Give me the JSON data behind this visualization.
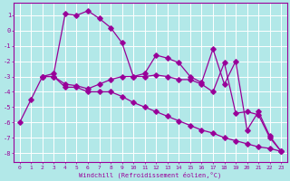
{
  "xlabel": "Windchill (Refroidissement éolien,°C)",
  "background_color": "#b2e8e8",
  "grid_color": "#ffffff",
  "line_color": "#990099",
  "xlim": [
    -0.5,
    23.5
  ],
  "ylim": [
    -8.6,
    1.8
  ],
  "xticks": [
    0,
    1,
    2,
    3,
    4,
    5,
    6,
    7,
    8,
    9,
    10,
    11,
    12,
    13,
    14,
    15,
    16,
    17,
    18,
    19,
    20,
    21,
    22,
    23
  ],
  "yticks": [
    1,
    0,
    -1,
    -2,
    -3,
    -4,
    -5,
    -6,
    -7,
    -8
  ],
  "line1_x": [
    0,
    1,
    2,
    3,
    4,
    5,
    6,
    7,
    8,
    9,
    10,
    11,
    12,
    13,
    14,
    15,
    16,
    17,
    18,
    19,
    20,
    21,
    22,
    23
  ],
  "line1_y": [
    -6.0,
    -4.5,
    -3.0,
    -3.0,
    -3.7,
    -3.7,
    -4.0,
    -4.0,
    -4.0,
    -4.3,
    -4.7,
    -5.0,
    -5.3,
    -5.6,
    -5.9,
    -6.2,
    -6.5,
    -6.7,
    -7.0,
    -7.2,
    -7.4,
    -7.6,
    -7.7,
    -7.9
  ],
  "line2_x": [
    2,
    3,
    4,
    5,
    6,
    7,
    8,
    9,
    10,
    11,
    12,
    13,
    14,
    15,
    16,
    17,
    18,
    19,
    20,
    21,
    22,
    23
  ],
  "line2_y": [
    -3.0,
    -2.8,
    1.1,
    1.0,
    1.3,
    0.8,
    0.2,
    -0.8,
    -3.0,
    -2.8,
    -1.6,
    -1.8,
    -2.1,
    -3.0,
    -3.4,
    -1.2,
    -3.5,
    -2.0,
    -6.5,
    -5.3,
    -6.9,
    -7.9
  ],
  "line3_x": [
    2,
    3,
    4,
    5,
    6,
    7,
    8,
    9,
    10,
    11,
    12,
    13,
    14,
    15,
    16,
    17,
    18,
    19,
    20,
    21,
    22,
    23
  ],
  "line3_y": [
    -3.0,
    -3.0,
    -3.5,
    -3.6,
    -3.8,
    -3.5,
    -3.2,
    -3.0,
    -3.0,
    -3.0,
    -2.9,
    -3.0,
    -3.2,
    -3.2,
    -3.5,
    -4.0,
    -2.1,
    -5.4,
    -5.3,
    -5.5,
    -7.0,
    -7.9
  ]
}
